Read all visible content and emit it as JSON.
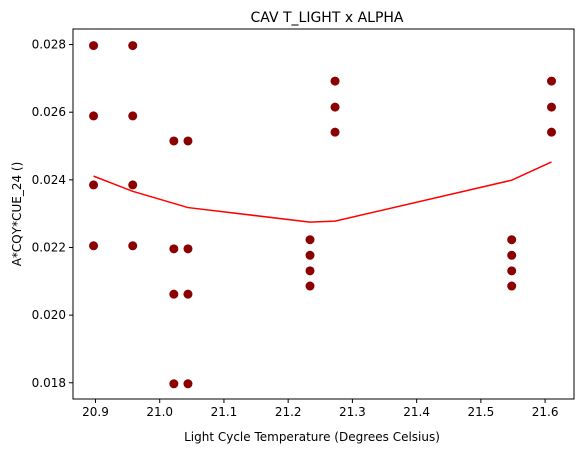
{
  "chart_data": {
    "type": "scatter",
    "title": "CAV T_LIGHT x ALPHA",
    "xlabel": "Light Cycle Temperature (Degrees Celsius)",
    "ylabel": "A*CQY*CUE_24 ()",
    "xlim": [
      20.865,
      21.645
    ],
    "ylim": [
      0.01752,
      0.02846
    ],
    "xticks": [
      "20.9",
      "21.0",
      "21.1",
      "21.2",
      "21.3",
      "21.4",
      "21.5",
      "21.6"
    ],
    "yticks": [
      "0.018",
      "0.020",
      "0.022",
      "0.024",
      "0.026",
      "0.028"
    ],
    "grid": false,
    "colors": {
      "points": "#8b0000",
      "line": "#ff0000"
    },
    "series": [
      {
        "type": "scatter",
        "x": [
          20.897,
          20.897,
          20.897,
          20.897,
          20.958,
          20.958,
          20.958,
          20.958,
          21.022,
          21.022,
          21.022,
          21.022,
          21.044,
          21.044,
          21.044,
          21.044,
          21.234,
          21.234,
          21.234,
          21.234,
          21.273,
          21.273,
          21.273,
          21.548,
          21.548,
          21.548,
          21.548,
          21.61,
          21.61,
          21.61
        ],
        "y": [
          0.02797,
          0.02589,
          0.02385,
          0.02205,
          0.02797,
          0.02589,
          0.02385,
          0.02205,
          0.02515,
          0.02196,
          0.02062,
          0.01797,
          0.02515,
          0.02196,
          0.02062,
          0.01797,
          0.02223,
          0.02177,
          0.02131,
          0.02086,
          0.02692,
          0.02615,
          0.02541,
          0.02223,
          0.02177,
          0.02131,
          0.02086,
          0.02692,
          0.02615,
          0.02541
        ]
      },
      {
        "type": "line",
        "x": [
          20.897,
          20.958,
          21.044,
          21.234,
          21.273,
          21.548,
          21.61
        ],
        "y": [
          0.02411,
          0.02366,
          0.02318,
          0.02275,
          0.02278,
          0.02399,
          0.02453
        ]
      }
    ]
  }
}
